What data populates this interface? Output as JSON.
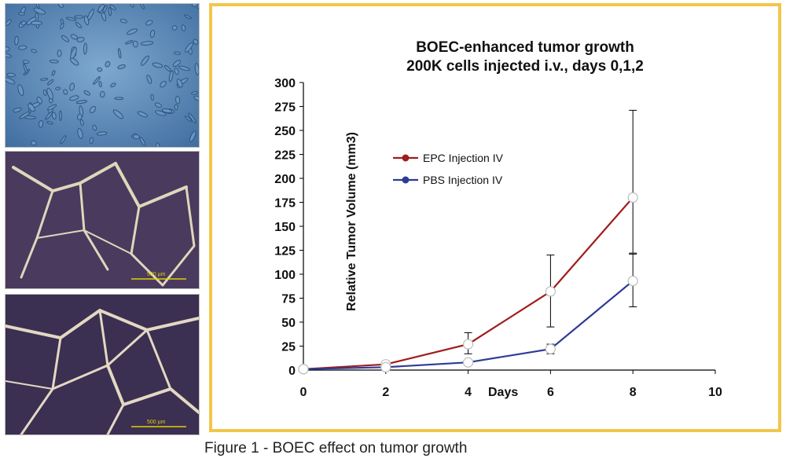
{
  "figure_caption": "Figure 1 - BOEC effect on tumor growth",
  "micrographs": [
    {
      "scale_bar": ""
    },
    {
      "scale_bar": "500 µm"
    },
    {
      "scale_bar": "500 µm"
    }
  ],
  "colors": {
    "frame": "#f2c64a",
    "epc": "#a01c1c",
    "pbs": "#2e3b96"
  },
  "chart_data": {
    "type": "line",
    "title": [
      "BOEC-enhanced tumor growth",
      "200K cells injected i.v., days 0,1,2"
    ],
    "xlabel": "Days",
    "ylabel": "Relative Tumor Volume (mm3)",
    "xlim": [
      0,
      10
    ],
    "ylim": [
      0,
      300
    ],
    "xticks": [
      "0",
      "2",
      "4",
      "6",
      "8",
      "10"
    ],
    "yticks": [
      "0",
      "25",
      "50",
      "75",
      "100",
      "125",
      "150",
      "175",
      "200",
      "225",
      "250",
      "275",
      "300"
    ],
    "grid": false,
    "legend_position": "upper-left",
    "x": [
      0,
      2,
      4,
      6,
      8
    ],
    "series": [
      {
        "name": "EPC Injection IV",
        "color": "#a01c1c",
        "values": [
          1,
          6,
          27,
          82,
          180
        ],
        "error_low": [
          null,
          null,
          17,
          45,
          122
        ],
        "error_high": [
          null,
          null,
          39,
          120,
          271
        ]
      },
      {
        "name": "PBS Injection IV",
        "color": "#2e3b96",
        "values": [
          1,
          3,
          8,
          22,
          93
        ],
        "error_low": [
          null,
          null,
          null,
          17,
          66
        ],
        "error_high": [
          null,
          null,
          null,
          27,
          121
        ]
      }
    ]
  }
}
